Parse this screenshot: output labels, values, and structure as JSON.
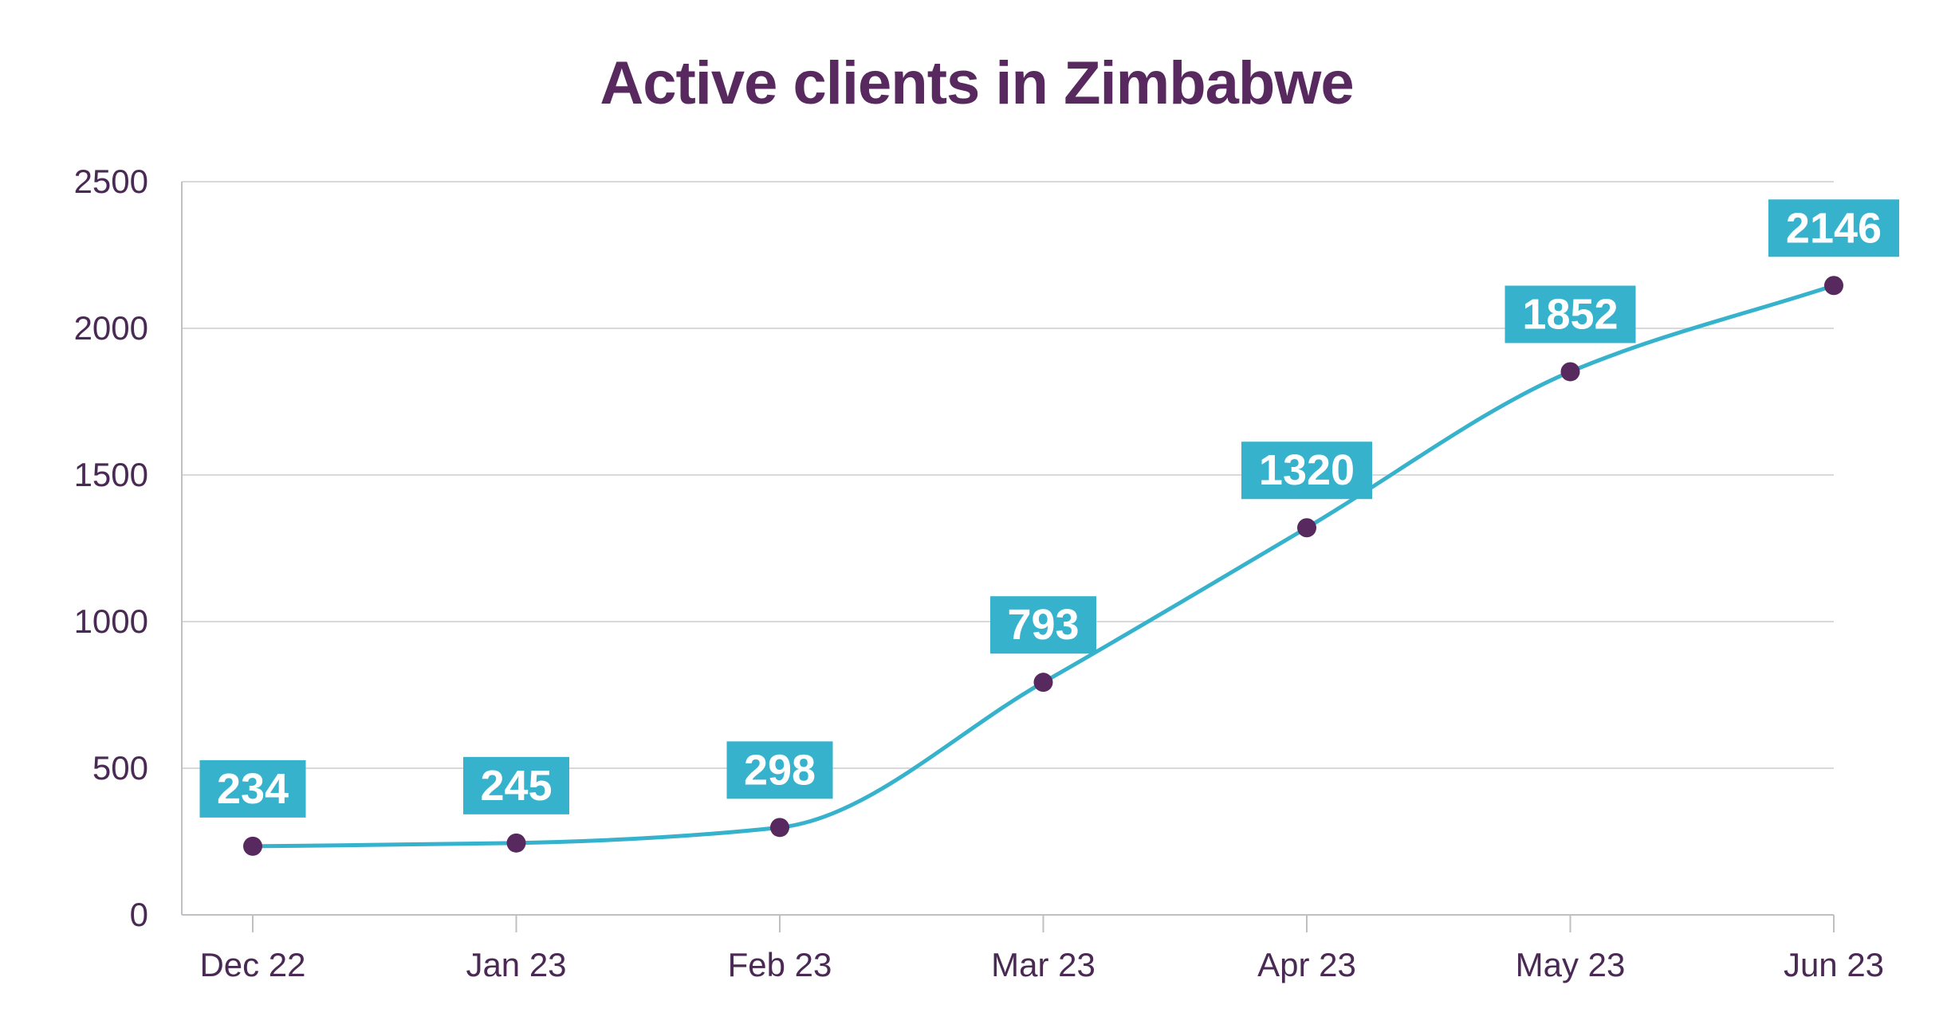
{
  "chart_data": {
    "type": "line",
    "title": "Active clients in Zimbabwe",
    "xlabel": "",
    "ylabel": "",
    "categories": [
      "Dec 22",
      "Jan 23",
      "Feb 23",
      "Mar 23",
      "Apr 23",
      "May 23",
      "Jun 23"
    ],
    "series": [
      {
        "name": "Active clients",
        "values": [
          234,
          245,
          298,
          793,
          1320,
          1852,
          2146
        ]
      }
    ],
    "ylim": [
      0,
      2500
    ],
    "yticks": [
      0,
      500,
      1000,
      1500,
      2000,
      2500
    ],
    "grid": true,
    "legend": "none",
    "colors": {
      "line": "#37b2cc",
      "marker": "#57295e",
      "label_bg": "#37b2cc",
      "label_text": "#ffffff",
      "title": "#57295e",
      "axis_text": "#4a2a55",
      "grid": "#d9d9dc",
      "axis": "#bfbfc4"
    }
  }
}
